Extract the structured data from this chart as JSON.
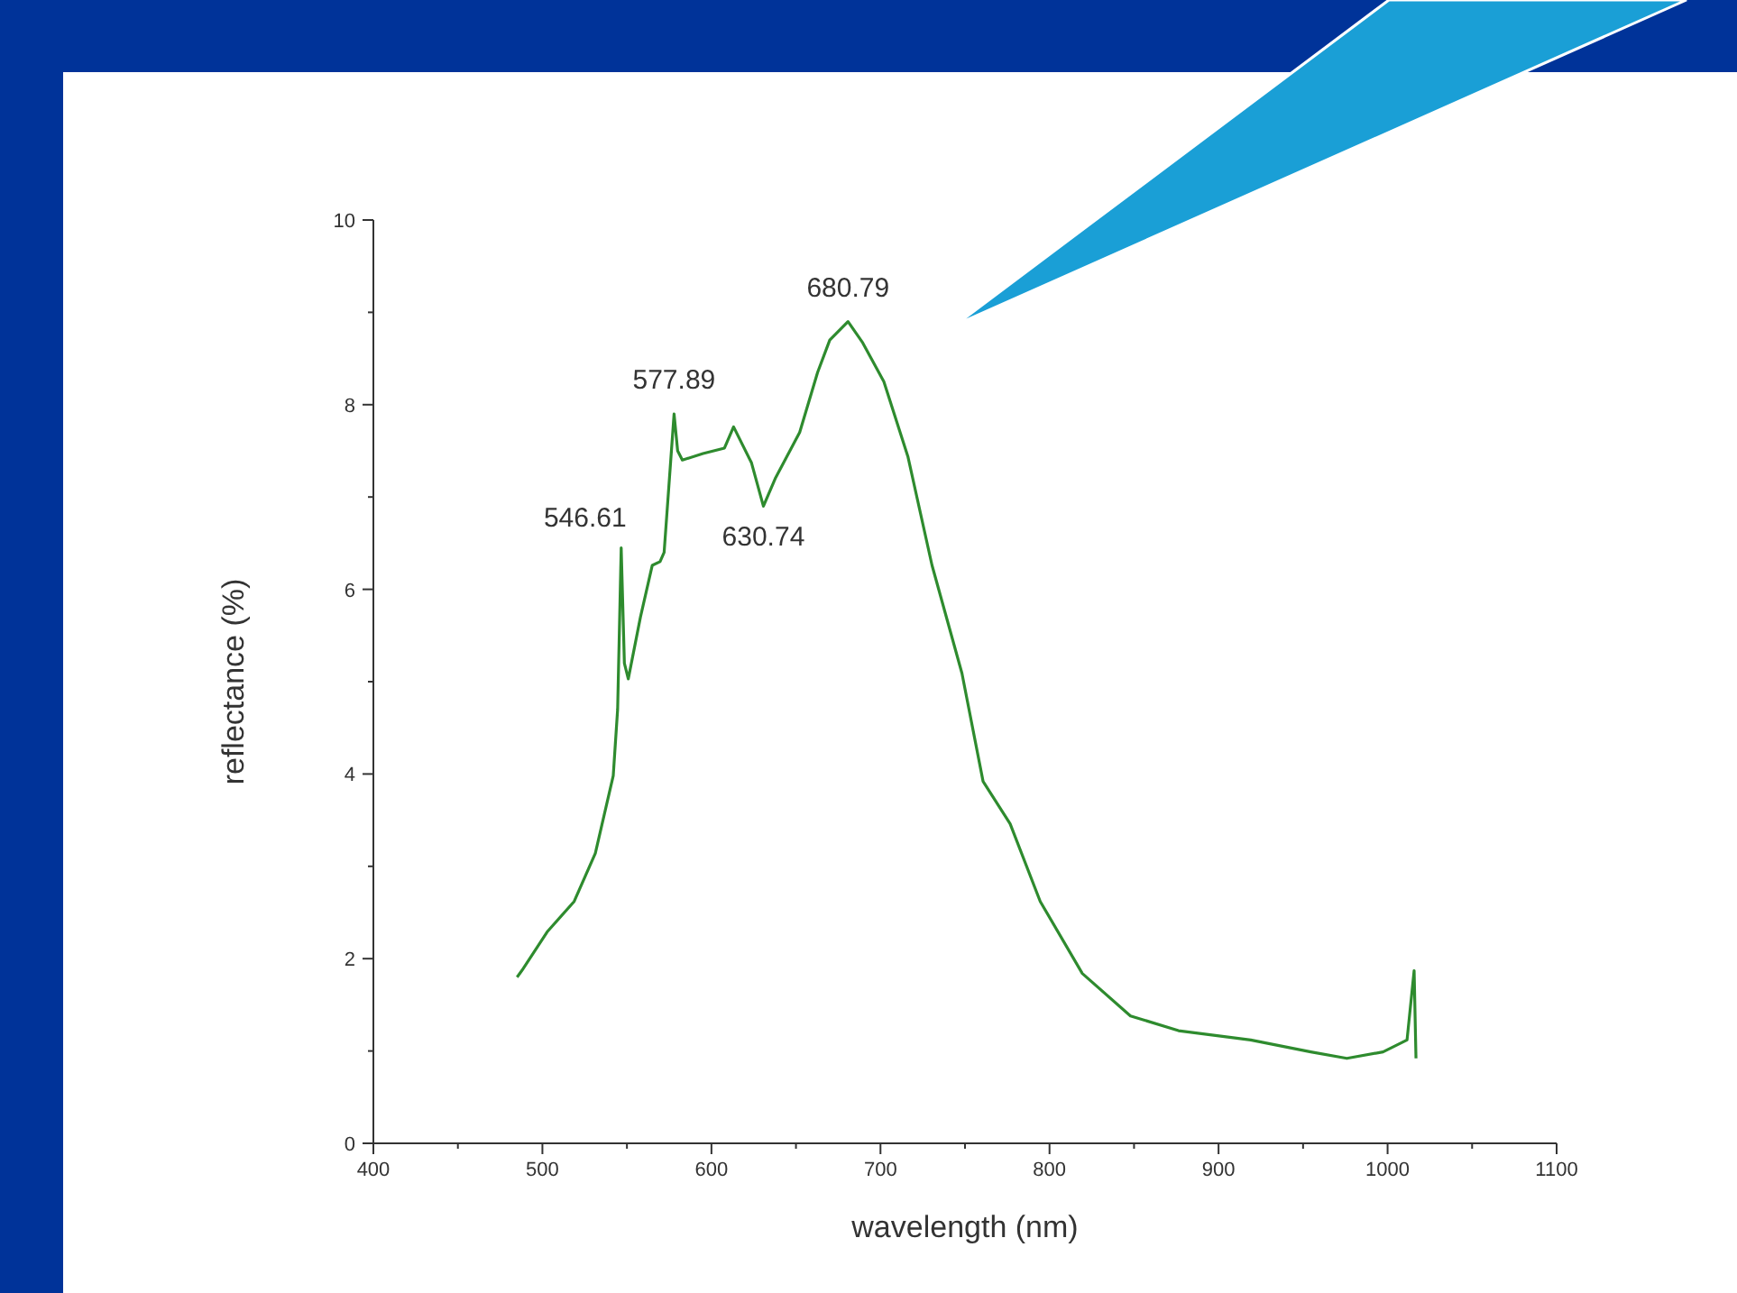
{
  "chart_data": {
    "type": "line",
    "xlabel": "wavelength (nm)",
    "ylabel": "reflectance (%)",
    "xlim": [
      400,
      1100
    ],
    "xticks": [
      400,
      500,
      600,
      700,
      800,
      900,
      1000,
      1100
    ],
    "ylim": [
      0,
      10
    ],
    "yticks": [
      0,
      2,
      4,
      6,
      8,
      10
    ],
    "grid": false,
    "marker": "none",
    "line_style": "solid",
    "series": [
      {
        "color": "#2e8b2e",
        "x": [
          485,
          487.8,
          502.8,
          518.8,
          531.3,
          541.9,
          544.5,
          546.61,
          548.5,
          550.8,
          558,
          565,
          569.6,
          572,
          577.89,
          580,
          582.8,
          595,
          607.7,
          613.1,
          623.7,
          630.74,
          638,
          652.2,
          662.8,
          670,
          680.79,
          689.5,
          702,
          716.2,
          730.5,
          748.2,
          760.7,
          776.7,
          794.5,
          819.4,
          847.9,
          876.3,
          919,
          954.6,
          975.9,
          997.3,
          1011.5,
          1015.7,
          1016.8
        ],
        "values": [
          1.8,
          1.87,
          2.29,
          2.62,
          3.14,
          3.98,
          4.7,
          6.45,
          5.2,
          5.03,
          5.7,
          6.26,
          6.3,
          6.4,
          7.9,
          7.5,
          7.4,
          7.47,
          7.53,
          7.76,
          7.37,
          6.9,
          7.21,
          7.7,
          8.35,
          8.7,
          8.9,
          8.67,
          8.25,
          7.44,
          6.26,
          5.09,
          3.92,
          3.46,
          2.62,
          1.84,
          1.38,
          1.22,
          1.12,
          0.99,
          0.92,
          0.99,
          1.12,
          1.87,
          0.92
        ]
      }
    ],
    "annotations": [
      {
        "text": "546.61",
        "x": 546.61,
        "y": 6.45
      },
      {
        "text": "577.89",
        "x": 577.89,
        "y": 7.9
      },
      {
        "text": "630.74",
        "x": 630.74,
        "y": 6.9
      },
      {
        "text": "680.79",
        "x": 680.79,
        "y": 8.9
      }
    ]
  }
}
